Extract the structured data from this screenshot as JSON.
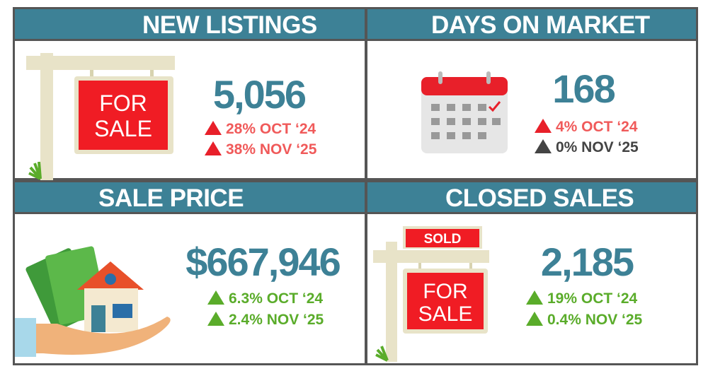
{
  "colors": {
    "header": "#3d8196",
    "value": "#3d8196",
    "up_red": "#e8202a",
    "up_green": "#5aac2a",
    "neutral": "#444444"
  },
  "panels": [
    {
      "title": "NEW LISTINGS",
      "value": "5,056",
      "icon": "for-sale-sign-icon",
      "sign_text": [
        "FOR",
        "SALE"
      ],
      "changes": [
        {
          "direction": "up",
          "tone": "red",
          "text": "28% OCT ‘24"
        },
        {
          "direction": "up",
          "tone": "red",
          "text": "38% NOV ‘25"
        }
      ]
    },
    {
      "title": "DAYS ON MARKET",
      "value": "168",
      "icon": "calendar-icon",
      "changes": [
        {
          "direction": "up",
          "tone": "red",
          "text": "4% OCT ‘24"
        },
        {
          "direction": "up",
          "tone": "neutral",
          "text": "0% NOV ‘25"
        }
      ]
    },
    {
      "title": "SALE PRICE",
      "value": "$667,946",
      "icon": "house-in-hand-money-icon",
      "changes": [
        {
          "direction": "up",
          "tone": "green",
          "text": "6.3% OCT ‘24"
        },
        {
          "direction": "up",
          "tone": "green",
          "text": "2.4% NOV ‘25"
        }
      ]
    },
    {
      "title": "CLOSED SALES",
      "value": "2,185",
      "icon": "sold-sign-icon",
      "sold_text": "SOLD",
      "sign_text": [
        "FOR",
        "SALE"
      ],
      "changes": [
        {
          "direction": "up",
          "tone": "green",
          "text": "19% OCT ‘24"
        },
        {
          "direction": "up",
          "tone": "green",
          "text": "0.4% NOV ‘25"
        }
      ]
    }
  ]
}
